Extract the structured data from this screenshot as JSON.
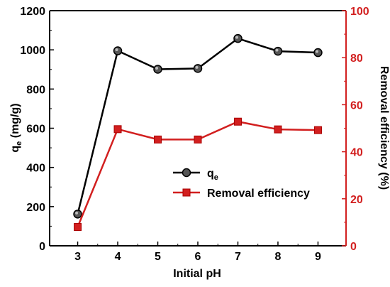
{
  "chart_data": {
    "type": "line",
    "xlabel": "Initial pH",
    "ylabel_left": "q",
    "ylabel_left_sub": "e",
    "ylabel_left_unit": " (mg/g)",
    "ylabel_right": "Removal efficiency (%)",
    "x": [
      3,
      4,
      5,
      6,
      7,
      8,
      9
    ],
    "xlim": [
      2.3,
      9.7
    ],
    "ylim_left": [
      0,
      1200
    ],
    "ylim_right": [
      0,
      100
    ],
    "xticks": [
      "3",
      "4",
      "5",
      "6",
      "7",
      "8",
      "9"
    ],
    "yticks_left": [
      "0",
      "200",
      "400",
      "600",
      "800",
      "1000",
      "1200"
    ],
    "yticks_right": [
      "0",
      "20",
      "40",
      "60",
      "80",
      "100"
    ],
    "grid": false,
    "legend_position": "center-right",
    "series": [
      {
        "name": "q",
        "name_sub": "e",
        "axis": "left",
        "marker": "circle",
        "color": "#000000",
        "values": [
          162,
          995,
          901,
          905,
          1058,
          993,
          986
        ]
      },
      {
        "name": "Removal efficiency",
        "axis": "right",
        "marker": "square",
        "color": "#d21f1f",
        "values": [
          8,
          49.6,
          45.2,
          45.2,
          52.8,
          49.5,
          49.2
        ]
      }
    ],
    "colors": {
      "left_axis": "#000000",
      "right_axis": "#d21f1f"
    }
  }
}
